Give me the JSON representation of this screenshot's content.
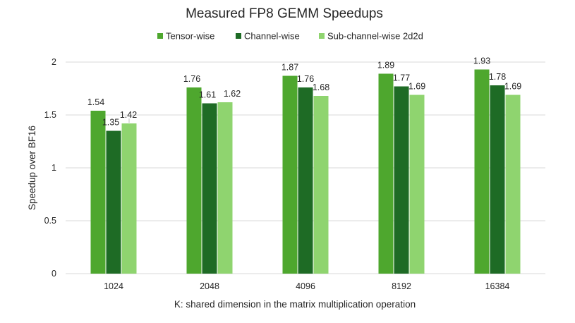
{
  "chart_data": {
    "type": "bar",
    "title": "Measured FP8 GEMM Speedups",
    "xlabel": "K: shared dimension in the matrix multiplication operation",
    "ylabel": "Speedup over BF16",
    "categories": [
      "1024",
      "2048",
      "4096",
      "8192",
      "16384"
    ],
    "series": [
      {
        "name": "Tensor-wise",
        "color": "#4ea72e",
        "values": [
          1.54,
          1.76,
          1.87,
          1.89,
          1.93
        ]
      },
      {
        "name": "Channel-wise",
        "color": "#1e6b25",
        "values": [
          1.35,
          1.61,
          1.76,
          1.77,
          1.78
        ]
      },
      {
        "name": "Sub-channel-wise 2d2d",
        "color": "#8fd46f",
        "values": [
          1.42,
          1.62,
          1.68,
          1.69,
          1.69
        ]
      }
    ],
    "ylim": [
      0,
      2
    ],
    "yticks": [
      0,
      0.5,
      1,
      1.5,
      2
    ],
    "ytick_labels": [
      "0",
      "0.5",
      "1",
      "1.5",
      "2"
    ],
    "grid": true,
    "legend_position": "top"
  }
}
